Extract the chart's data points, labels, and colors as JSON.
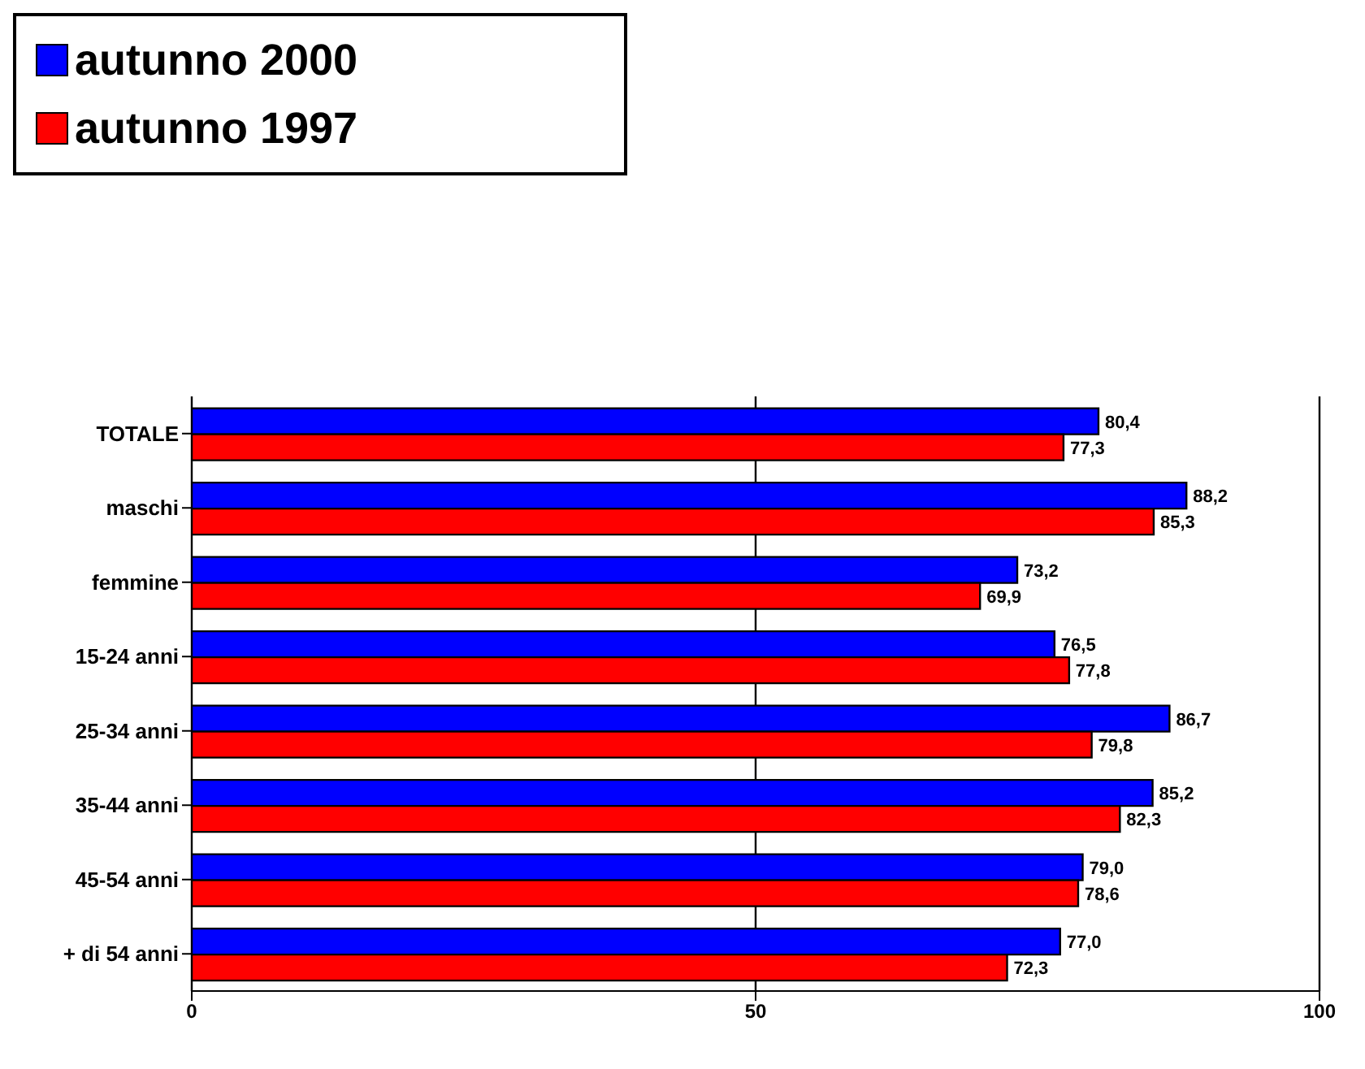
{
  "chart_data": {
    "type": "bar",
    "orientation": "horizontal",
    "categories": [
      "TOTALE",
      "maschi",
      "femmine",
      "15-24 anni",
      "25-34 anni",
      "35-44 anni",
      "45-54 anni",
      "+ di 54 anni"
    ],
    "series": [
      {
        "name": "autunno 2000",
        "color": "#0000ff",
        "values": [
          80.4,
          88.2,
          73.2,
          76.5,
          86.7,
          85.2,
          79.0,
          77.0
        ],
        "value_labels": [
          "80,4",
          "88,2",
          "73,2",
          "76,5",
          "86,7",
          "85,2",
          "79,0",
          "77,0"
        ]
      },
      {
        "name": "autunno 1997",
        "color": "#ff0000",
        "values": [
          77.3,
          85.3,
          69.9,
          77.8,
          79.8,
          82.3,
          78.6,
          72.3
        ],
        "value_labels": [
          "77,3",
          "85,3",
          "69,9",
          "77,8",
          "79,8",
          "82,3",
          "78,6",
          "72,3"
        ]
      }
    ],
    "xlim": [
      0,
      100
    ],
    "xticks": [
      0,
      50,
      100
    ],
    "grid": "x",
    "legend": "top left"
  }
}
